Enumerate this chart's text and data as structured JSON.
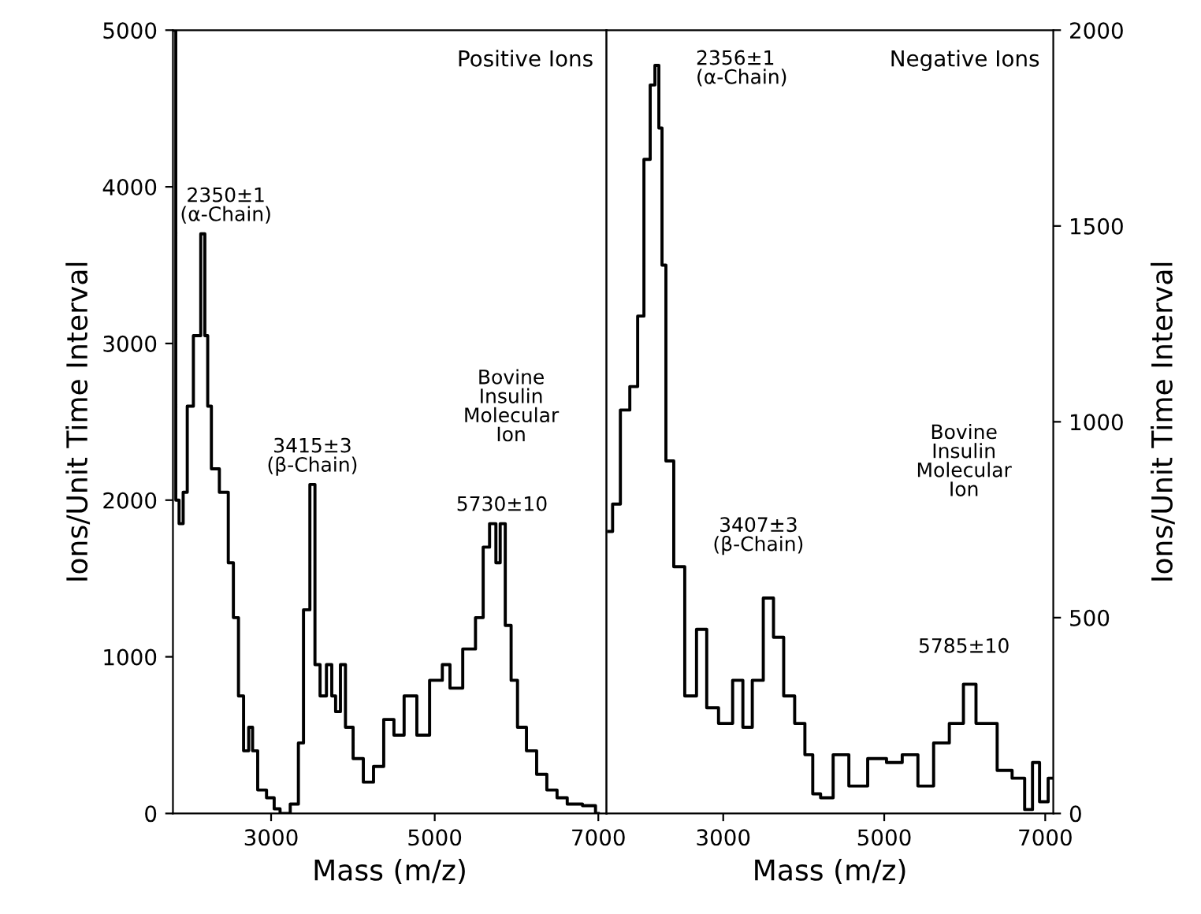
{
  "chart_data": [
    {
      "type": "step",
      "xlabel": "Mass (m/z)",
      "ylabel": "Ions/Unit Time Interval",
      "xlim": [
        1800,
        7100
      ],
      "xticks": [
        3000,
        5000,
        7000
      ],
      "ylim": [
        0,
        5000
      ],
      "yticks": [
        0,
        1000,
        2000,
        3000,
        4000,
        5000
      ],
      "grid": false,
      "legend": false,
      "series": [
        {
          "color": "#000000",
          "x": [
            1820,
            1850,
            1900,
            1950,
            2000,
            2100,
            2180,
            2200,
            2250,
            2290,
            2445,
            2508,
            2570,
            2632,
            2695,
            2757,
            2790,
            2882,
            3006,
            3069,
            3150,
            3318,
            3349,
            3443,
            3505,
            3567,
            3630,
            3723,
            3760,
            3817,
            3878,
            3940,
            4065,
            4190,
            4314,
            4439,
            4564,
            4688,
            4875,
            5000,
            5062,
            5124,
            5249,
            5436,
            5561,
            5624,
            5717,
            5779,
            5822,
            5903,
            5965,
            6059,
            6184,
            6308,
            6433,
            6558,
            6682,
            6931,
            7000
          ],
          "values": [
            5000,
            2000,
            1850,
            2050,
            2600,
            3050,
            3700,
            3050,
            2600,
            2200,
            2050,
            1600,
            1250,
            750,
            400,
            550,
            400,
            150,
            100,
            30,
            0,
            60,
            450,
            1300,
            2100,
            950,
            750,
            950,
            750,
            650,
            950,
            550,
            350,
            200,
            300,
            600,
            500,
            750,
            500,
            850,
            850,
            950,
            800,
            1050,
            1250,
            1700,
            1850,
            1600,
            1850,
            1200,
            850,
            550,
            400,
            250,
            150,
            100,
            60,
            50,
            0
          ]
        }
      ],
      "annotations": [
        {
          "text": "Positive Ions"
        },
        {
          "text": "2350±1\n(α-Chain)",
          "x": 2180,
          "y": 3700
        },
        {
          "text": "3415±3\n(β-Chain)",
          "x": 3505,
          "y": 2100
        },
        {
          "text": "Bovine\nInsulin\nMolecular\nIon"
        },
        {
          "text": "5730±10",
          "x": 5822,
          "y": 1850
        }
      ]
    },
    {
      "type": "step",
      "xlabel": "Mass (m/z)",
      "y2label": "Ions/Unit Time Interval",
      "xlim": [
        1550,
        7100
      ],
      "xticks": [
        3000,
        5000,
        7000
      ],
      "y2lim": [
        0,
        2000
      ],
      "y2ticks": [
        0,
        500,
        1000,
        1500,
        2000
      ],
      "grid": false,
      "legend": false,
      "series": [
        {
          "color": "#000000",
          "axis": "y2",
          "x": [
            1577,
            1674,
            1771,
            1908,
            1966,
            2064,
            2122,
            2181,
            2220,
            2259,
            2317,
            2454,
            2590,
            2746,
            2844,
            3039,
            3195,
            3293,
            3429,
            3566,
            3683,
            3819,
            3956,
            4073,
            4151,
            4268,
            4463,
            4658,
            4931,
            5126,
            5321,
            5516,
            5711,
            5906,
            6062,
            6218,
            6315,
            6491,
            6686,
            6803,
            6881,
            6978,
            7095
          ],
          "values": [
            720,
            790,
            1030,
            1090,
            1270,
            1670,
            1860,
            1910,
            1750,
            1400,
            900,
            630,
            300,
            470,
            270,
            230,
            340,
            220,
            340,
            550,
            450,
            300,
            230,
            150,
            50,
            40,
            150,
            70,
            140,
            130,
            150,
            70,
            180,
            230,
            330,
            230,
            230,
            110,
            90,
            10,
            130,
            30,
            90
          ]
        }
      ],
      "annotations": [
        "Negative Ions",
        "2356±1\n(α-Chain)",
        "3407±3\n(β-Chain)",
        "Bovine\nInsulin\nMolecular\nIon",
        "5785±10"
      ]
    }
  ]
}
